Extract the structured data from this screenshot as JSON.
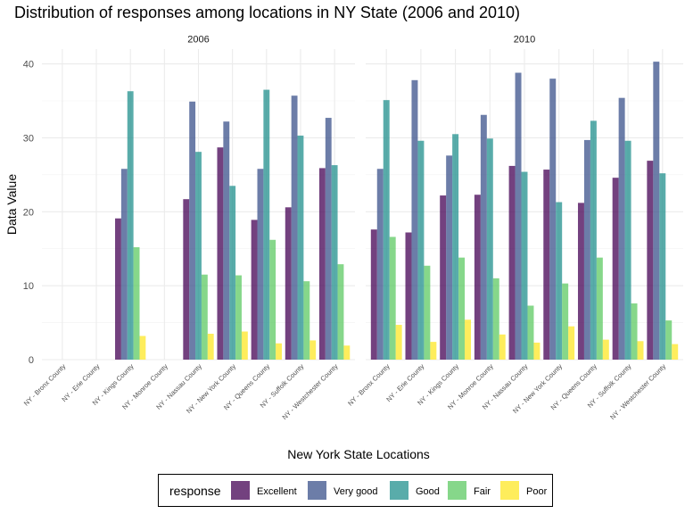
{
  "chart_data": {
    "type": "bar",
    "title": "Distribution of responses among locations in NY State (2006 and 2010)",
    "xlabel": "New York State Locations",
    "ylabel": "Data Value",
    "ylim": [
      0,
      42
    ],
    "y_ticks": [
      0,
      10,
      20,
      30,
      40
    ],
    "grid": true,
    "legend": {
      "title": "response",
      "position": "bottom"
    },
    "series_names": [
      "Excellent",
      "Very good",
      "Good",
      "Fair",
      "Poor"
    ],
    "colors": [
      "#440154",
      "#3b528b",
      "#21908d",
      "#5dc963",
      "#fde725"
    ],
    "panels": [
      {
        "label": "2006",
        "categories": [
          "NY - Bronx County",
          "NY - Erie County",
          "NY - Kings County",
          "NY - Monroe County",
          "NY - Nassau County",
          "NY - New York County",
          "NY - Queens County",
          "NY - Suffolk County",
          "NY - Westchester County"
        ],
        "series": [
          {
            "name": "Excellent",
            "values": [
              null,
              null,
              19.1,
              null,
              21.7,
              28.7,
              18.9,
              20.6,
              25.9
            ]
          },
          {
            "name": "Very good",
            "values": [
              null,
              null,
              25.8,
              null,
              34.9,
              32.2,
              25.8,
              35.7,
              32.7
            ]
          },
          {
            "name": "Good",
            "values": [
              null,
              null,
              36.3,
              null,
              28.1,
              23.5,
              36.5,
              30.3,
              26.3
            ]
          },
          {
            "name": "Fair",
            "values": [
              null,
              null,
              15.2,
              null,
              11.5,
              11.4,
              16.2,
              10.6,
              12.9
            ]
          },
          {
            "name": "Poor",
            "values": [
              null,
              null,
              3.2,
              null,
              3.5,
              3.8,
              2.2,
              2.6,
              1.9
            ]
          }
        ]
      },
      {
        "label": "2010",
        "categories": [
          "NY - Bronx County",
          "NY - Erie County",
          "NY - Kings County",
          "NY - Monroe County",
          "NY - Nassau County",
          "NY - New York County",
          "NY - Queens County",
          "NY - Suffolk County",
          "NY - Westchester County"
        ],
        "series": [
          {
            "name": "Excellent",
            "values": [
              17.6,
              17.2,
              22.2,
              22.3,
              26.2,
              25.7,
              21.2,
              24.6,
              26.9
            ]
          },
          {
            "name": "Very good",
            "values": [
              25.8,
              37.8,
              27.6,
              33.1,
              38.8,
              38.0,
              29.7,
              35.4,
              40.3
            ]
          },
          {
            "name": "Good",
            "values": [
              35.1,
              29.6,
              30.5,
              29.9,
              25.4,
              21.3,
              32.3,
              29.6,
              25.2
            ]
          },
          {
            "name": "Fair",
            "values": [
              16.6,
              12.7,
              13.8,
              11.0,
              7.3,
              10.3,
              13.8,
              7.6,
              5.3
            ]
          },
          {
            "name": "Poor",
            "values": [
              4.7,
              2.4,
              5.4,
              3.4,
              2.3,
              4.5,
              2.7,
              2.5,
              2.1
            ]
          }
        ]
      }
    ]
  }
}
